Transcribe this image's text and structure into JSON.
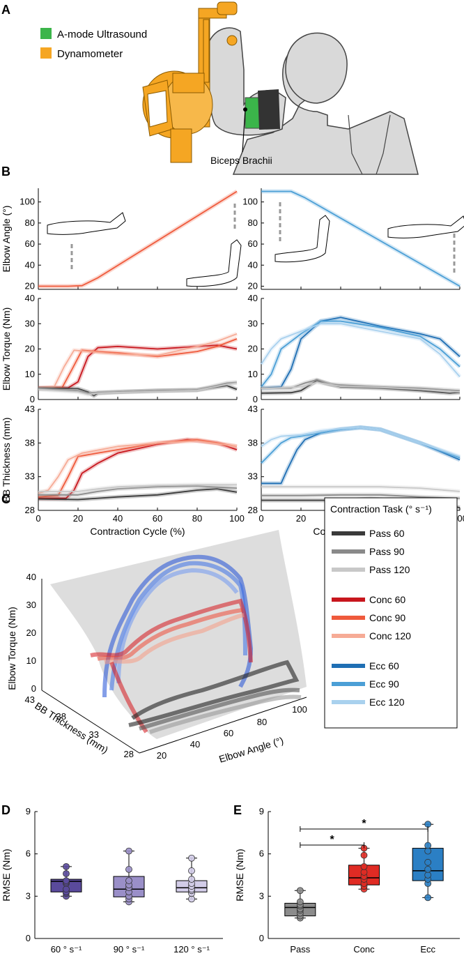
{
  "panels": {
    "A": "A",
    "B": "B",
    "C": "C",
    "D": "D",
    "E": "E"
  },
  "colors": {
    "ultrasound": "#3bb54a",
    "dynamometer": "#f5a623",
    "pass60": "#3a3a3a",
    "pass90": "#8a8a8a",
    "pass120": "#c8c8c8",
    "conc60": "#c8161d",
    "conc90": "#ef5a3c",
    "conc120": "#f6ab96",
    "ecc60": "#1f6fb4",
    "ecc90": "#4b9fd6",
    "ecc120": "#a9d1ee",
    "boxD60": "#5a4a9c",
    "boxD90": "#9a8fc8",
    "boxD120": "#d2cce8",
    "boxPass": "#8c8c8c",
    "boxConc": "#e02b24",
    "boxEcc": "#2b7fc4"
  },
  "panelA": {
    "legend": [
      {
        "label": "A-mode Ultrasound",
        "color": "#3bb54a"
      },
      {
        "label": "Dynamometer",
        "color": "#f5a623"
      }
    ],
    "annotation": "Biceps Brachii"
  },
  "panelB": {
    "xlabel": "Contraction Cycle (%)",
    "xticks": [
      "0",
      "20",
      "40",
      "60",
      "80",
      "100"
    ],
    "rows": [
      {
        "ylabel": "Elbow Angle (°)",
        "yticks": [
          "20",
          "40",
          "60",
          "80",
          "100"
        ],
        "ylim": [
          17,
          113
        ]
      },
      {
        "ylabel": "Elbow Torque (Nm)",
        "yticks": [
          "0",
          "10",
          "20",
          "30",
          "40"
        ],
        "ylim": [
          0,
          40
        ]
      },
      {
        "ylabel": "BB Thickness (mm)",
        "yticks": [
          "28",
          "33",
          "38",
          "43"
        ],
        "ylim": [
          28,
          43
        ]
      }
    ]
  },
  "chart_data": [
    {
      "type": "line",
      "panel": "B-angle-concentric",
      "ylim": [
        17,
        113
      ],
      "xlim": [
        0,
        100
      ],
      "series": [
        {
          "name": "Conc",
          "x": [
            0,
            15,
            22,
            30,
            100
          ],
          "values": [
            20,
            20,
            20.5,
            28,
            110
          ]
        }
      ]
    },
    {
      "type": "line",
      "panel": "B-angle-eccentric",
      "ylim": [
        17,
        113
      ],
      "xlim": [
        0,
        100
      ],
      "series": [
        {
          "name": "Ecc",
          "x": [
            0,
            15,
            22,
            100
          ],
          "values": [
            110,
            110,
            104,
            20
          ]
        }
      ]
    },
    {
      "type": "line",
      "panel": "B-torque-concentric",
      "ylim": [
        0,
        40
      ],
      "xlim": [
        0,
        100
      ],
      "series": [
        {
          "name": "Conc 60",
          "x": [
            0,
            15,
            20,
            25,
            30,
            40,
            60,
            80,
            90,
            100
          ],
          "values": [
            4.5,
            4.6,
            7,
            17,
            20.5,
            21,
            20,
            21,
            21.5,
            20
          ]
        },
        {
          "name": "Conc 90",
          "x": [
            0,
            12,
            17,
            22,
            30,
            40,
            60,
            80,
            90,
            100
          ],
          "values": [
            4.5,
            4.7,
            12,
            19.5,
            19,
            18.5,
            17,
            19,
            21,
            24
          ]
        },
        {
          "name": "Conc 120",
          "x": [
            0,
            8,
            13,
            18,
            25,
            40,
            60,
            80,
            90,
            100
          ],
          "values": [
            4.5,
            5,
            13,
            19.5,
            19,
            18,
            17.5,
            21,
            23,
            26
          ]
        },
        {
          "name": "Pass 60",
          "x": [
            0,
            20,
            25,
            28,
            30,
            40,
            60,
            80,
            95,
            100
          ],
          "values": [
            4.5,
            4.3,
            3,
            1.5,
            2.5,
            3,
            3.5,
            3.8,
            5.5,
            4
          ]
        },
        {
          "name": "Pass 90",
          "x": [
            0,
            20,
            25,
            28,
            40,
            60,
            80,
            95,
            100
          ],
          "values": [
            4.3,
            3.5,
            2.5,
            2.8,
            3,
            3.5,
            3.8,
            6.5,
            6.8
          ]
        },
        {
          "name": "Pass 120",
          "x": [
            0,
            20,
            25,
            30,
            40,
            60,
            80,
            95,
            100
          ],
          "values": [
            4,
            3,
            2,
            2.5,
            2.8,
            3.2,
            3.6,
            6,
            6.5
          ]
        }
      ]
    },
    {
      "type": "line",
      "panel": "B-torque-eccentric",
      "ylim": [
        0,
        40
      ],
      "xlim": [
        0,
        100
      ],
      "series": [
        {
          "name": "Ecc 60",
          "x": [
            0,
            10,
            15,
            20,
            30,
            40,
            60,
            80,
            90,
            100
          ],
          "values": [
            4.5,
            5,
            12,
            24,
            31,
            32.5,
            29,
            26,
            24,
            17
          ]
        },
        {
          "name": "Ecc 90",
          "x": [
            0,
            5,
            10,
            20,
            30,
            40,
            60,
            80,
            90,
            100
          ],
          "values": [
            5,
            10,
            20,
            26,
            31,
            31,
            28.5,
            25,
            20,
            13
          ]
        },
        {
          "name": "Ecc 120",
          "x": [
            0,
            5,
            10,
            20,
            30,
            40,
            60,
            80,
            90,
            100
          ],
          "values": [
            14,
            20,
            24,
            27,
            30,
            30,
            27,
            24,
            18,
            9
          ]
        },
        {
          "name": "Pass 60",
          "x": [
            0,
            15,
            20,
            25,
            28,
            32,
            40,
            60,
            80,
            95,
            100
          ],
          "values": [
            2.5,
            2.7,
            3.5,
            6,
            7.5,
            6.5,
            5,
            4.5,
            3.5,
            2.5,
            2.8
          ]
        },
        {
          "name": "Pass 90",
          "x": [
            0,
            15,
            22,
            28,
            35,
            60,
            80,
            100
          ],
          "values": [
            4.5,
            4.5,
            6.5,
            7.8,
            6,
            5,
            4.5,
            3.5
          ]
        },
        {
          "name": "Pass 120",
          "x": [
            0,
            20,
            28,
            40,
            60,
            80,
            100
          ],
          "values": [
            4.3,
            5,
            6.8,
            5.2,
            4.8,
            4,
            3
          ]
        }
      ]
    },
    {
      "type": "line",
      "panel": "B-thickness-concentric",
      "ylim": [
        28,
        43
      ],
      "xlim": [
        0,
        100
      ],
      "series": [
        {
          "name": "Conc 60",
          "x": [
            0,
            14,
            18,
            22,
            30,
            40,
            60,
            75,
            90,
            100
          ],
          "values": [
            29.8,
            29.8,
            31,
            33.5,
            35,
            36.5,
            37.8,
            38.5,
            38,
            37
          ]
        },
        {
          "name": "Conc 90",
          "x": [
            0,
            10,
            15,
            20,
            30,
            40,
            60,
            80,
            90,
            100
          ],
          "values": [
            30,
            30.2,
            33,
            36,
            36.5,
            37,
            38,
            38.5,
            38,
            37.5
          ]
        },
        {
          "name": "Conc 120",
          "x": [
            0,
            5,
            10,
            15,
            22,
            40,
            60,
            80,
            100
          ],
          "values": [
            30.5,
            31,
            33,
            35.5,
            36.5,
            37.5,
            38,
            38.3,
            37.5
          ]
        },
        {
          "name": "Pass 60",
          "x": [
            0,
            20,
            30,
            40,
            60,
            80,
            90,
            100
          ],
          "values": [
            29.7,
            29.6,
            29.8,
            30,
            30.3,
            31,
            31.2,
            30.7
          ]
        },
        {
          "name": "Pass 90",
          "x": [
            0,
            20,
            30,
            40,
            60,
            80,
            100
          ],
          "values": [
            30.3,
            30.3,
            30.8,
            31.2,
            31.5,
            31.6,
            31.3
          ]
        },
        {
          "name": "Pass 120",
          "x": [
            0,
            20,
            30,
            40,
            60,
            80,
            100
          ],
          "values": [
            30.8,
            30.8,
            31.2,
            31.5,
            31.7,
            31.8,
            31.8
          ]
        }
      ]
    },
    {
      "type": "line",
      "panel": "B-thickness-eccentric",
      "ylim": [
        28,
        43
      ],
      "xlim": [
        0,
        100
      ],
      "series": [
        {
          "name": "Ecc 60",
          "x": [
            0,
            10,
            13,
            18,
            22,
            30,
            40,
            50,
            60,
            80,
            100
          ],
          "values": [
            32,
            32,
            34,
            37,
            38.5,
            39.5,
            40,
            40.3,
            40,
            38,
            35.5
          ]
        },
        {
          "name": "Ecc 90",
          "x": [
            0,
            5,
            10,
            15,
            20,
            30,
            40,
            50,
            60,
            80,
            100
          ],
          "values": [
            35,
            36.5,
            38,
            38.8,
            39,
            39.5,
            40,
            40.3,
            40,
            38,
            35.8
          ]
        },
        {
          "name": "Ecc 120",
          "x": [
            0,
            5,
            10,
            20,
            30,
            40,
            50,
            60,
            80,
            100
          ],
          "values": [
            37.5,
            38.5,
            39,
            39.2,
            39.8,
            40.1,
            40.3,
            40,
            38,
            36
          ]
        },
        {
          "name": "Pass 60",
          "x": [
            0,
            20,
            40,
            55,
            70,
            90,
            100
          ],
          "values": [
            29.5,
            29.5,
            29.5,
            29.7,
            29.5,
            29,
            28.4
          ]
        },
        {
          "name": "Pass 90",
          "x": [
            0,
            20,
            40,
            60,
            80,
            100
          ],
          "values": [
            30.2,
            30.2,
            30.3,
            30.3,
            30,
            29.8
          ]
        },
        {
          "name": "Pass 120",
          "x": [
            0,
            20,
            40,
            60,
            80,
            100
          ],
          "values": [
            31.5,
            31.5,
            31.5,
            31.5,
            31.3,
            30.8
          ]
        }
      ]
    },
    {
      "type": "scatter",
      "panel": "C-3d",
      "axes": {
        "z": {
          "label": "Elbow Torque (Nm)",
          "ticks": [
            "0",
            "10",
            "20",
            "30",
            "40"
          ]
        },
        "y": {
          "label": "BB Thickness (mm)",
          "ticks": [
            "43",
            "38",
            "33",
            "28"
          ]
        },
        "x": {
          "label": "Elbow Angle (°)",
          "ticks": [
            "20",
            "40",
            "60",
            "80",
            "100"
          ]
        }
      }
    },
    {
      "type": "box",
      "panel": "D",
      "ylabel": "RMSE (Nm)",
      "yticks": [
        "0",
        "3",
        "6",
        "9"
      ],
      "ylim": [
        0,
        9
      ],
      "categories": [
        "60 ° s⁻¹",
        "90 ° s⁻¹",
        "120 ° s⁻¹"
      ],
      "boxes": [
        {
          "min": 3.0,
          "q1": 3.3,
          "median": 4.05,
          "q3": 4.2,
          "max": 5.1,
          "points": [
            3.0,
            3.2,
            3.3,
            3.5,
            3.9,
            4.0,
            4.1,
            4.6,
            5.1
          ]
        },
        {
          "min": 2.6,
          "q1": 2.95,
          "median": 3.5,
          "q3": 4.4,
          "max": 6.2,
          "points": [
            2.6,
            2.8,
            3.0,
            3.3,
            3.6,
            3.8,
            4.1,
            4.9,
            6.2
          ]
        },
        {
          "min": 2.8,
          "q1": 3.3,
          "median": 3.6,
          "q3": 4.1,
          "max": 5.7,
          "points": [
            2.8,
            3.2,
            3.4,
            3.5,
            3.7,
            3.9,
            4.2,
            4.8,
            5.7
          ]
        }
      ]
    },
    {
      "type": "box",
      "panel": "E",
      "ylabel": "RMSE (Nm)",
      "yticks": [
        "0",
        "3",
        "6",
        "9"
      ],
      "ylim": [
        0,
        9
      ],
      "categories": [
        "Pass",
        "Conc",
        "Ecc"
      ],
      "boxes": [
        {
          "min": 1.45,
          "q1": 1.6,
          "median": 2.2,
          "q3": 2.5,
          "max": 3.4,
          "points": [
            1.45,
            1.6,
            1.8,
            2.0,
            2.1,
            2.3,
            2.4,
            2.6,
            3.4
          ]
        },
        {
          "min": 3.5,
          "q1": 3.8,
          "median": 4.3,
          "q3": 5.2,
          "max": 6.4,
          "points": [
            3.5,
            3.7,
            3.9,
            4.2,
            4.4,
            4.7,
            5.1,
            5.9,
            6.4
          ]
        },
        {
          "min": 2.9,
          "q1": 4.1,
          "median": 4.8,
          "q3": 6.4,
          "max": 8.1,
          "points": [
            2.9,
            3.9,
            4.2,
            4.5,
            4.9,
            5.4,
            6.2,
            6.6,
            8.1
          ]
        }
      ],
      "significance": [
        {
          "from": "Pass",
          "to": "Conc",
          "label": "*"
        },
        {
          "from": "Pass",
          "to": "Ecc",
          "label": "*"
        }
      ]
    }
  ],
  "panelC": {
    "legend_title": "Contraction Task (° s⁻¹)",
    "legend": [
      {
        "label": "Pass 60",
        "color": "#3a3a3a"
      },
      {
        "label": "Pass 90",
        "color": "#8a8a8a"
      },
      {
        "label": "Pass 120",
        "color": "#c8c8c8"
      },
      {
        "label": "Conc 60",
        "color": "#c8161d"
      },
      {
        "label": "Conc 90",
        "color": "#ef5a3c"
      },
      {
        "label": "Conc 120",
        "color": "#f6ab96"
      },
      {
        "label": "Ecc 60",
        "color": "#1f6fb4"
      },
      {
        "label": "Ecc 90",
        "color": "#4b9fd6"
      },
      {
        "label": "Ecc 120",
        "color": "#a9d1ee"
      }
    ]
  }
}
